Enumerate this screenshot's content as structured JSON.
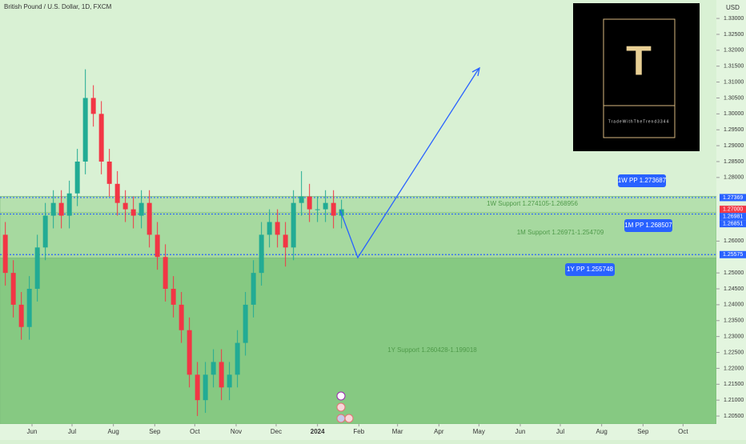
{
  "chart_data": {
    "type": "candlestick",
    "title": "British Pound / U.S. Dollar, 1D, FXCM",
    "currency": "USD",
    "up_color": "#22ab94",
    "down_color": "#f23645",
    "x": [
      -20,
      -14,
      -8,
      -2,
      4,
      10,
      16,
      22,
      28,
      34,
      40,
      46,
      52,
      58,
      64,
      70,
      76,
      82,
      88,
      94,
      100,
      106,
      112,
      118,
      124,
      130,
      136,
      142,
      148,
      154,
      160,
      166,
      172,
      178,
      184,
      190,
      196,
      202,
      208,
      214,
      220,
      226,
      232
    ],
    "open": [
      1.262,
      1.25,
      1.24,
      1.233,
      1.245,
      1.258,
      1.268,
      1.272,
      1.268,
      1.275,
      1.285,
      1.305,
      1.3,
      1.285,
      1.278,
      1.272,
      1.27,
      1.268,
      1.272,
      1.262,
      1.255,
      1.245,
      1.24,
      1.232,
      1.218,
      1.21,
      1.218,
      1.222,
      1.214,
      1.218,
      1.228,
      1.24,
      1.25,
      1.262,
      1.266,
      1.262,
      1.258,
      1.272,
      1.274,
      1.27,
      1.27,
      1.272,
      1.268
    ],
    "high": [
      1.266,
      1.254,
      1.244,
      1.249,
      1.262,
      1.272,
      1.276,
      1.276,
      1.279,
      1.289,
      1.314,
      1.309,
      1.304,
      1.289,
      1.282,
      1.276,
      1.274,
      1.276,
      1.276,
      1.266,
      1.259,
      1.249,
      1.244,
      1.236,
      1.222,
      1.222,
      1.226,
      1.226,
      1.222,
      1.232,
      1.244,
      1.254,
      1.266,
      1.27,
      1.27,
      1.266,
      1.276,
      1.282,
      1.278,
      1.274,
      1.276,
      1.276,
      1.273
    ],
    "low": [
      1.246,
      1.236,
      1.229,
      1.229,
      1.241,
      1.254,
      1.264,
      1.264,
      1.264,
      1.271,
      1.281,
      1.296,
      1.281,
      1.274,
      1.268,
      1.266,
      1.264,
      1.264,
      1.258,
      1.251,
      1.241,
      1.236,
      1.228,
      1.214,
      1.205,
      1.206,
      1.214,
      1.21,
      1.21,
      1.214,
      1.224,
      1.236,
      1.246,
      1.258,
      1.258,
      1.252,
      1.254,
      1.268,
      1.266,
      1.266,
      1.266,
      1.264,
      1.264
    ],
    "close": [
      1.25,
      1.24,
      1.233,
      1.245,
      1.258,
      1.268,
      1.272,
      1.268,
      1.275,
      1.285,
      1.305,
      1.3,
      1.285,
      1.278,
      1.272,
      1.27,
      1.268,
      1.272,
      1.262,
      1.255,
      1.245,
      1.24,
      1.232,
      1.218,
      1.21,
      1.218,
      1.222,
      1.214,
      1.218,
      1.228,
      1.24,
      1.25,
      1.262,
      1.266,
      1.262,
      1.258,
      1.272,
      1.274,
      1.27,
      1.27,
      1.272,
      1.268,
      1.27
    ],
    "xlim": [
      -24,
      513
    ],
    "xticks": [
      {
        "value": 0,
        "label": "Jun"
      },
      {
        "value": 30,
        "label": "Jul"
      },
      {
        "value": 61,
        "label": "Aug"
      },
      {
        "value": 92,
        "label": "Sep"
      },
      {
        "value": 122,
        "label": "Oct"
      },
      {
        "value": 153,
        "label": "Nov"
      },
      {
        "value": 183,
        "label": "Dec"
      },
      {
        "value": 214,
        "label": "2024"
      },
      {
        "value": 245,
        "label": "Feb"
      },
      {
        "value": 274,
        "label": "Mar"
      },
      {
        "value": 305,
        "label": "Apr"
      },
      {
        "value": 335,
        "label": "May"
      },
      {
        "value": 366,
        "label": "Jun"
      },
      {
        "value": 396,
        "label": "Jul"
      },
      {
        "value": 427,
        "label": "Aug"
      },
      {
        "value": 458,
        "label": "Sep"
      },
      {
        "value": 488,
        "label": "Oct"
      }
    ],
    "ylim": [
      1.2025,
      1.3358
    ],
    "yticks": [
      {
        "value": 1.33,
        "label": "1.33000"
      },
      {
        "value": 1.325,
        "label": "1.32500"
      },
      {
        "value": 1.32,
        "label": "1.32000"
      },
      {
        "value": 1.315,
        "label": "1.31500"
      },
      {
        "value": 1.31,
        "label": "1.31000"
      },
      {
        "value": 1.305,
        "label": "1.30500"
      },
      {
        "value": 1.3,
        "label": "1.30000"
      },
      {
        "value": 1.295,
        "label": "1.29500"
      },
      {
        "value": 1.29,
        "label": "1.29000"
      },
      {
        "value": 1.285,
        "label": "1.28500"
      },
      {
        "value": 1.28,
        "label": "1.28000"
      },
      {
        "value": 1.26,
        "label": "1.26000"
      },
      {
        "value": 1.25,
        "label": "1.25000"
      },
      {
        "value": 1.245,
        "label": "1.24500"
      },
      {
        "value": 1.24,
        "label": "1.24000"
      },
      {
        "value": 1.235,
        "label": "1.23500"
      },
      {
        "value": 1.23,
        "label": "1.23000"
      },
      {
        "value": 1.225,
        "label": "1.22500"
      },
      {
        "value": 1.22,
        "label": "1.22000"
      },
      {
        "value": 1.215,
        "label": "1.21500"
      },
      {
        "value": 1.21,
        "label": "1.21000"
      },
      {
        "value": 1.205,
        "label": "1.20500"
      }
    ],
    "zones": [
      {
        "label": "1Y Support 1.260428-1.199018",
        "range": [
          1.260428,
          1.199018
        ],
        "color": "#86c982"
      },
      {
        "label": "1M Support 1.26971-1.254709",
        "range": [
          1.26971,
          1.254709
        ],
        "color": "#a6d99f"
      },
      {
        "label": "1W Support 1.274105-1.268956",
        "range": [
          1.274105,
          1.268956
        ],
        "color": "#b5e0ae"
      }
    ],
    "levels": [
      {
        "label": "1W PP 1.273687",
        "value": 1.273687
      },
      {
        "label": "1M PP 1.268507",
        "value": 1.268507
      },
      {
        "label": "1Y PP 1.255748",
        "value": 1.255748
      }
    ],
    "price_markers": [
      {
        "value": 1.27369,
        "label": "1.27369",
        "color": "#2962ff"
      },
      {
        "value": 1.27,
        "label": "1.27000",
        "color": "#f23645"
      },
      {
        "value": 1.26981,
        "label": "1.26981",
        "color": "#2962ff"
      },
      {
        "value": 1.26851,
        "label": "1.26851",
        "color": "#2962ff"
      },
      {
        "value": 1.25575,
        "label": "1.25575",
        "color": "#2962ff"
      }
    ],
    "logo": {
      "letter": "T",
      "name": "TradeWithTheTrend3344"
    }
  }
}
